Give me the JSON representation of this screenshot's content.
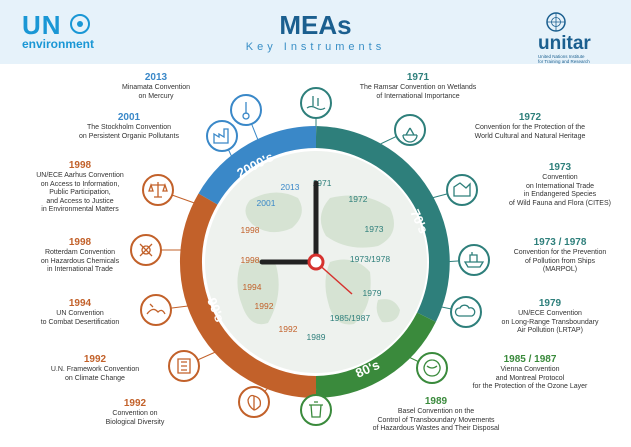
{
  "header": {
    "un_logo_top": "UN",
    "un_logo_bottom": "environment",
    "title": "MEAs",
    "subtitle": "Key Instruments",
    "unitar_name": "unitar",
    "unitar_sub_1": "United Nations Institute",
    "unitar_sub_2": "for Training and Research"
  },
  "colors": {
    "teal": "#2e7f7b",
    "orange": "#c2612a",
    "green": "#3a8a3c",
    "blue": "#3a88c8"
  },
  "decades": {
    "d2000": "2000's",
    "d70": "70's",
    "d80": "80's",
    "d90": "90's"
  },
  "dial_years": [
    "1971",
    "1972",
    "1973",
    "1973/1978",
    "1979",
    "1985/1987",
    "1989",
    "1992",
    "1992",
    "1994",
    "1998",
    "1998",
    "2001",
    "2013"
  ],
  "conventions_left": [
    {
      "year": "2013",
      "text": "Minamata Convention\non Mercury",
      "icon": "thermometer-icon"
    },
    {
      "year": "2001",
      "text": "The Stockholm Convention\non Persistent Organic Pollutants",
      "icon": "factory-icon"
    },
    {
      "year": "1998",
      "text": "UN/ECE Aarhus Convention\non Access to Information,\nPublic Participation,\nand Access to Justice\nin Environmental Matters",
      "icon": "scales-icon"
    },
    {
      "year": "1998",
      "text": "Rotterdam Convention\non Hazardous Chemicals\nin International Trade",
      "icon": "hazard-icon"
    },
    {
      "year": "1994",
      "text": "UN Convention\nto Combat Desertification",
      "icon": "desert-icon"
    },
    {
      "year": "1992",
      "text": "U.N. Framework Convention\non Climate Change",
      "icon": "climate-icon"
    },
    {
      "year": "1992",
      "text": "Convention on\nBiological Diversity",
      "icon": "leaf-icon"
    }
  ],
  "conventions_right": [
    {
      "year": "1971",
      "text": "The Ramsar Convention on Wetlands\nof International Importance",
      "icon": "wetland-icon"
    },
    {
      "year": "1972",
      "text": "Convention for the Protection of the\nWorld  Cultural and Natural Heritage",
      "icon": "heritage-icon"
    },
    {
      "year": "1973",
      "text": "Convention\non International Trade\nin Endangered Species\nof Wild Fauna and Flora (CITES)",
      "icon": "cites-icon"
    },
    {
      "year": "1973 / 1978",
      "text": "Convention for the Prevention\nof Pollution from Ships\n(MARPOL)",
      "icon": "ship-icon"
    },
    {
      "year": "1979",
      "text": "UN/ECE Convention\non Long-Range Transboundary\nAir Pollution (LRTAP)",
      "icon": "cloud-icon"
    },
    {
      "year": "1985 / 1987",
      "text": "Vienna Convention\nand Montreal Protocol\nfor the Protection of the Ozone Layer",
      "icon": "ozone-icon"
    },
    {
      "year": "1989",
      "text": "Basel Convention on the\nControl of Transboundary Movements\nof Hazardous Wastes and Their Disposal",
      "icon": "waste-bin-icon"
    }
  ]
}
